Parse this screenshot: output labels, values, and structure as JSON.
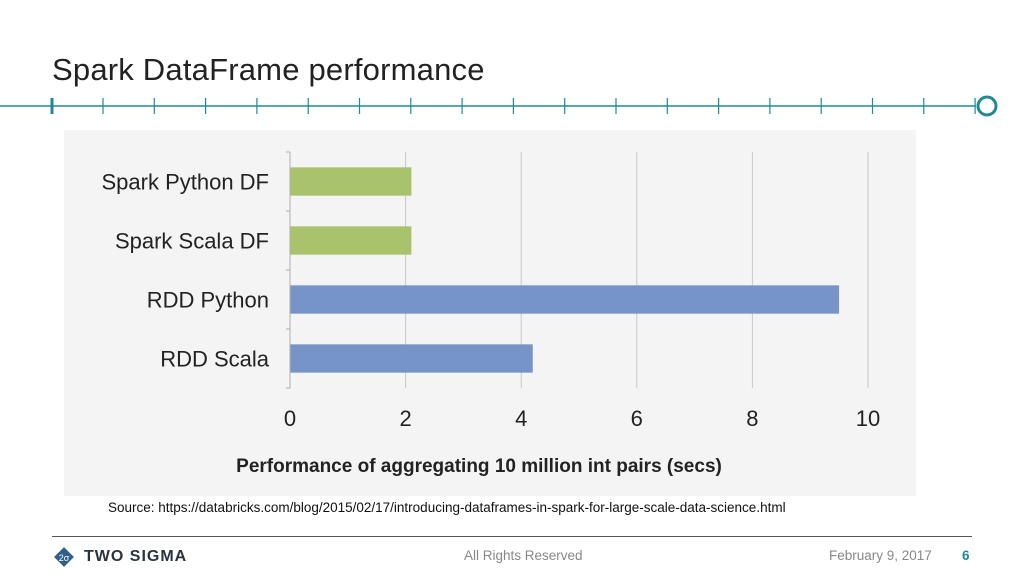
{
  "slide": {
    "title": "Spark DataFrame performance",
    "source": "Source: https://databricks.com/blog/2015/02/17/introducing-dataframes-in-spark-for-large-scale-data-science.html",
    "rights": "All Rights Reserved",
    "date": "February 9, 2017",
    "page_number": "6",
    "brand": "TWO SIGMA",
    "logo_mark": "2σ",
    "accent_color": "#1f8a96"
  },
  "chart_data": {
    "type": "bar",
    "orientation": "horizontal",
    "title": "",
    "xlabel": "Performance of aggregating 10 million int pairs (secs)",
    "ylabel": "",
    "categories": [
      "Spark Python DF",
      "Spark Scala DF",
      "RDD Python",
      "RDD Scala"
    ],
    "values": [
      2.1,
      2.1,
      9.5,
      4.2
    ],
    "colors": [
      "#a9c26c",
      "#a9c26c",
      "#7694c8",
      "#7694c8"
    ],
    "xlim": [
      0,
      10
    ],
    "xticks": [
      "0",
      "2",
      "4",
      "6",
      "8",
      "10"
    ],
    "grid": "vertical"
  }
}
